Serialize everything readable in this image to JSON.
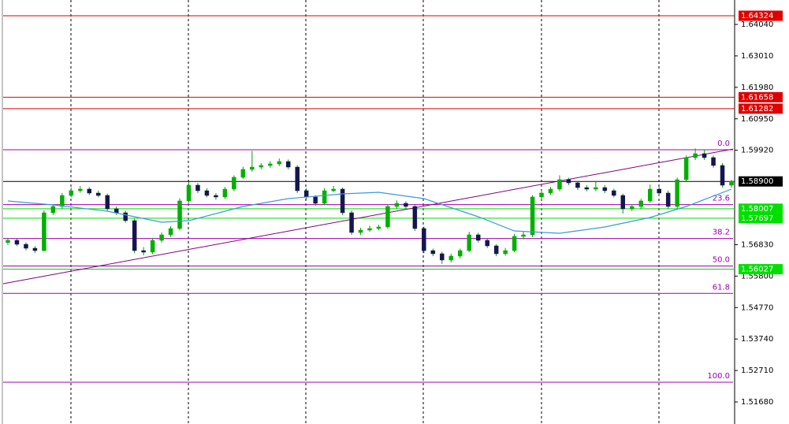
{
  "chart_data": {
    "type": "candlestick",
    "ylim": [
      1.50958,
      1.6484
    ],
    "yticks": [
      {
        "value": 1.6404,
        "label": "1.64040"
      },
      {
        "value": 1.6301,
        "label": "1.63010"
      },
      {
        "value": 1.6198,
        "label": "1.61980"
      },
      {
        "value": 1.6095,
        "label": "1.60950"
      },
      {
        "value": 1.5992,
        "label": "1.59920"
      },
      {
        "value": 1.5683,
        "label": "1.56830"
      },
      {
        "value": 1.558,
        "label": "1.55800"
      },
      {
        "value": 1.5477,
        "label": "1.54770"
      },
      {
        "value": 1.5374,
        "label": "1.53740"
      },
      {
        "value": 1.5271,
        "label": "1.52710"
      },
      {
        "value": 1.5168,
        "label": "1.51680"
      }
    ],
    "grid": true,
    "colors": {
      "bull": "#00b000",
      "bear": "#15154f",
      "wick": "#00a000",
      "ma": "#3a9ad9",
      "trend": "#800080",
      "fib": "#a000b0"
    },
    "ohlc": [
      [
        1.569,
        1.5705,
        1.5682,
        1.56971
      ],
      [
        1.56971,
        1.5703,
        1.5678,
        1.56842
      ],
      [
        1.56842,
        1.569,
        1.5664,
        1.56713
      ],
      [
        1.56713,
        1.5678,
        1.5656,
        1.56635
      ],
      [
        1.56635,
        1.5795,
        1.566,
        1.57874
      ],
      [
        1.57874,
        1.5815,
        1.578,
        1.5808
      ],
      [
        1.5808,
        1.5852,
        1.58,
        1.58441
      ],
      [
        1.58441,
        1.587,
        1.5838,
        1.58596
      ],
      [
        1.58596,
        1.5875,
        1.5853,
        1.58648
      ],
      [
        1.58648,
        1.5872,
        1.5845,
        1.58519
      ],
      [
        1.58519,
        1.586,
        1.5838,
        1.58441
      ],
      [
        1.58441,
        1.585,
        1.5793,
        1.58003
      ],
      [
        1.58003,
        1.5808,
        1.578,
        1.57874
      ],
      [
        1.57874,
        1.5795,
        1.5755,
        1.57616
      ],
      [
        1.57616,
        1.5768,
        1.5655,
        1.56635
      ],
      [
        1.56635,
        1.5675,
        1.5648,
        1.56584
      ],
      [
        1.56584,
        1.5705,
        1.5652,
        1.56971
      ],
      [
        1.56971,
        1.5723,
        1.569,
        1.57151
      ],
      [
        1.57151,
        1.5743,
        1.5708,
        1.57358
      ],
      [
        1.57358,
        1.5835,
        1.573,
        1.58261
      ],
      [
        1.58261,
        1.5888,
        1.582,
        1.58777
      ],
      [
        1.58777,
        1.5885,
        1.5852,
        1.58596
      ],
      [
        1.58596,
        1.5868,
        1.5838,
        1.58441
      ],
      [
        1.58441,
        1.5852,
        1.583,
        1.5839
      ],
      [
        1.5839,
        1.5872,
        1.5833,
        1.58648
      ],
      [
        1.58648,
        1.591,
        1.5858,
        1.59035
      ],
      [
        1.59035,
        1.5938,
        1.5898,
        1.59293
      ],
      [
        1.59293,
        1.599,
        1.5922,
        1.5937
      ],
      [
        1.5937,
        1.595,
        1.593,
        1.59422
      ],
      [
        1.59422,
        1.5956,
        1.5935,
        1.59473
      ],
      [
        1.59473,
        1.5965,
        1.594,
        1.59551
      ],
      [
        1.59551,
        1.5962,
        1.593,
        1.5937
      ],
      [
        1.5937,
        1.5943,
        1.5852,
        1.58596
      ],
      [
        1.58596,
        1.5868,
        1.583,
        1.5839
      ],
      [
        1.5839,
        1.5845,
        1.581,
        1.58183
      ],
      [
        1.58183,
        1.5868,
        1.5812,
        1.58596
      ],
      [
        1.58596,
        1.5875,
        1.5855,
        1.58648
      ],
      [
        1.58648,
        1.587,
        1.578,
        1.57874
      ],
      [
        1.57874,
        1.5795,
        1.5715,
        1.57229
      ],
      [
        1.57229,
        1.5738,
        1.5715,
        1.57306
      ],
      [
        1.57306,
        1.5745,
        1.5725,
        1.57358
      ],
      [
        1.57358,
        1.5748,
        1.573,
        1.57409
      ],
      [
        1.57409,
        1.5815,
        1.5735,
        1.5808
      ],
      [
        1.5808,
        1.5828,
        1.58,
        1.58183
      ],
      [
        1.58183,
        1.5825,
        1.58,
        1.5808
      ],
      [
        1.5808,
        1.5813,
        1.5728,
        1.57358
      ],
      [
        1.57358,
        1.5742,
        1.5655,
        1.56635
      ],
      [
        1.56635,
        1.567,
        1.5645,
        1.56532
      ],
      [
        1.56532,
        1.566,
        1.562,
        1.56326
      ],
      [
        1.56326,
        1.5653,
        1.5625,
        1.56455
      ],
      [
        1.56455,
        1.567,
        1.5638,
        1.56635
      ],
      [
        1.56635,
        1.5725,
        1.5658,
        1.57151
      ],
      [
        1.57151,
        1.5722,
        1.569,
        1.56971
      ],
      [
        1.56971,
        1.5705,
        1.5672,
        1.5679
      ],
      [
        1.5679,
        1.5685,
        1.5645,
        1.56532
      ],
      [
        1.56532,
        1.5672,
        1.5647,
        1.56635
      ],
      [
        1.56635,
        1.5718,
        1.5658,
        1.571
      ],
      [
        1.571,
        1.5725,
        1.57,
        1.57151
      ],
      [
        1.57151,
        1.5845,
        1.5708,
        1.5839
      ],
      [
        1.5839,
        1.586,
        1.5832,
        1.58519
      ],
      [
        1.58519,
        1.5872,
        1.5845,
        1.58648
      ],
      [
        1.58648,
        1.591,
        1.5858,
        1.58957
      ],
      [
        1.58957,
        1.5902,
        1.5878,
        1.58854
      ],
      [
        1.58854,
        1.5892,
        1.5862,
        1.58699
      ],
      [
        1.58699,
        1.5878,
        1.5858,
        1.58648
      ],
      [
        1.58648,
        1.589,
        1.5858,
        1.58699
      ],
      [
        1.58699,
        1.5878,
        1.5852,
        1.58596
      ],
      [
        1.58596,
        1.5866,
        1.5838,
        1.58441
      ],
      [
        1.58441,
        1.585,
        1.5785,
        1.58003
      ],
      [
        1.58003,
        1.5815,
        1.5793,
        1.5808
      ],
      [
        1.5808,
        1.5833,
        1.58,
        1.58261
      ],
      [
        1.58261,
        1.588,
        1.582,
        1.58648
      ],
      [
        1.58648,
        1.5872,
        1.5845,
        1.58519
      ],
      [
        1.58519,
        1.586,
        1.58,
        1.5808
      ],
      [
        1.5808,
        1.5903,
        1.58,
        1.58957
      ],
      [
        1.58957,
        1.5975,
        1.589,
        1.5968
      ],
      [
        1.5968,
        1.5998,
        1.596,
        1.59809
      ],
      [
        1.59809,
        1.5995,
        1.596,
        1.5968
      ],
      [
        1.5968,
        1.5975,
        1.5935,
        1.59422
      ],
      [
        1.59422,
        1.595,
        1.587,
        1.58777
      ],
      [
        1.58777,
        1.5895,
        1.587,
        1.589
      ]
    ],
    "ma": {
      "x": [
        0,
        5,
        11,
        17,
        20,
        26,
        31,
        37,
        41,
        46,
        52,
        56,
        61,
        66,
        71,
        75,
        80
      ],
      "values": [
        1.58261,
        1.58132,
        1.57925,
        1.57564,
        1.57616,
        1.5808,
        1.58338,
        1.58493,
        1.58545,
        1.58338,
        1.57745,
        1.5728,
        1.57203,
        1.57409,
        1.57719,
        1.5808,
        1.58648
      ]
    },
    "trendline": {
      "start": 1.55551,
      "end": 1.59961
    },
    "fib_levels": [
      {
        "value": 1.59938,
        "label": "0.0"
      },
      {
        "value": 1.58142,
        "label": "23.6"
      },
      {
        "value": 1.5703,
        "label": "38.2"
      },
      {
        "value": 1.56132,
        "label": "50.0"
      },
      {
        "value": 1.55234,
        "label": "61.8"
      },
      {
        "value": 1.52326,
        "label": "100.0"
      }
    ],
    "levels": [
      {
        "value": 1.64324,
        "label": "1.64324",
        "color": "#e00000"
      },
      {
        "value": 1.61658,
        "label": "1.61658",
        "color": "#e00000"
      },
      {
        "value": 1.61282,
        "label": "1.61282",
        "color": "#e00000"
      },
      {
        "value": 1.58007,
        "label": "1.58007",
        "color": "#00e000"
      },
      {
        "value": 1.57697,
        "label": "1.57697",
        "color": "#00e000"
      },
      {
        "value": 1.56027,
        "label": "1.56027",
        "color": "#00e000"
      },
      {
        "value": 1.589,
        "label": "1.58900",
        "color": "#000000"
      }
    ]
  }
}
